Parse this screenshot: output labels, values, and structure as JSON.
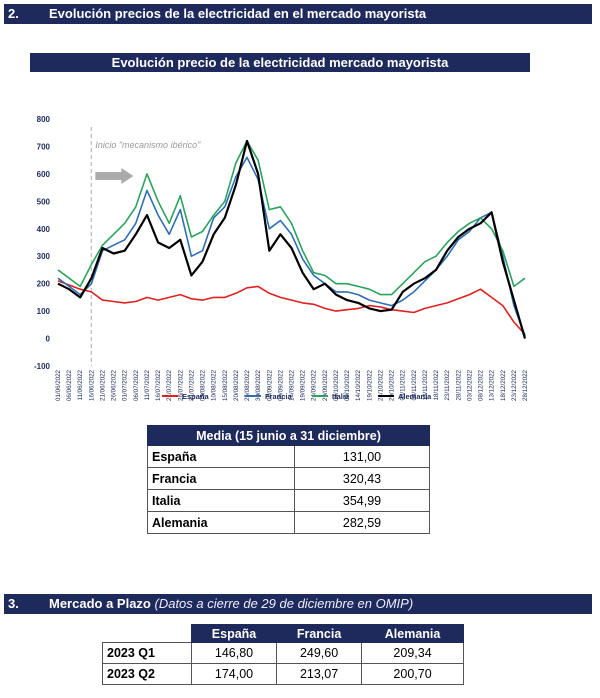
{
  "section2": {
    "number": "2.",
    "title": "Evolución precios de la electricidad en el mercado mayorista"
  },
  "chart_title": "Evolución precio de la electricidad mercado mayorista",
  "chart_data": {
    "type": "line",
    "title": "Evolución precio de la electricidad mercado mayorista",
    "ylim": [
      -100,
      800
    ],
    "yticks": [
      -100,
      0,
      100,
      200,
      300,
      400,
      500,
      600,
      700,
      800
    ],
    "xlabel": "",
    "ylabel": "",
    "x": [
      "01/06/2022",
      "06/06/2022",
      "11/06/2022",
      "16/06/2022",
      "21/06/2022",
      "26/06/2022",
      "01/07/2022",
      "06/07/2022",
      "11/07/2022",
      "16/07/2022",
      "21/07/2022",
      "26/07/2022",
      "31/07/2022",
      "05/08/2022",
      "10/08/2022",
      "15/08/2022",
      "20/08/2022",
      "25/08/2022",
      "30/08/2022",
      "04/09/2022",
      "09/09/2022",
      "14/09/2022",
      "19/09/2022",
      "24/09/2022",
      "29/09/2022",
      "04/10/2022",
      "09/10/2022",
      "14/10/2022",
      "19/10/2022",
      "24/10/2022",
      "29/10/2022",
      "03/11/2022",
      "08/11/2022",
      "13/11/2022",
      "18/11/2022",
      "23/11/2022",
      "28/11/2022",
      "03/12/2022",
      "08/12/2022",
      "13/12/2022",
      "18/12/2022",
      "23/12/2022",
      "28/12/2022"
    ],
    "annotation": "Inicio \"mecanismo ibérico\"",
    "annotation_x": "15/06/2022",
    "legend_position": "bottom",
    "series": [
      {
        "name": "España",
        "color": "#e02020",
        "values": [
          210,
          195,
          180,
          170,
          140,
          135,
          130,
          135,
          150,
          140,
          150,
          160,
          145,
          140,
          150,
          150,
          165,
          185,
          190,
          165,
          150,
          140,
          130,
          125,
          110,
          100,
          105,
          110,
          120,
          115,
          105,
          100,
          95,
          110,
          120,
          130,
          145,
          160,
          180,
          150,
          120,
          60,
          15
        ]
      },
      {
        "name": "Francia",
        "color": "#2f6eb5",
        "values": [
          220,
          190,
          160,
          200,
          320,
          340,
          360,
          420,
          540,
          450,
          380,
          470,
          300,
          320,
          440,
          480,
          590,
          660,
          580,
          400,
          430,
          380,
          290,
          230,
          200,
          170,
          170,
          160,
          140,
          130,
          120,
          140,
          170,
          210,
          250,
          300,
          360,
          390,
          440,
          460,
          300,
          120,
          10
        ]
      },
      {
        "name": "Italia",
        "color": "#2ca25f",
        "values": [
          250,
          220,
          190,
          270,
          340,
          380,
          420,
          480,
          600,
          500,
          420,
          520,
          370,
          390,
          450,
          500,
          640,
          720,
          650,
          470,
          480,
          420,
          320,
          240,
          230,
          200,
          200,
          190,
          180,
          160,
          160,
          200,
          240,
          280,
          300,
          350,
          390,
          420,
          440,
          400,
          320,
          190,
          220
        ]
      },
      {
        "name": "Alemania",
        "color": "#000000",
        "values": [
          200,
          180,
          150,
          220,
          330,
          310,
          320,
          380,
          450,
          350,
          330,
          360,
          230,
          280,
          380,
          440,
          560,
          720,
          600,
          320,
          380,
          330,
          240,
          180,
          200,
          160,
          140,
          130,
          110,
          100,
          105,
          170,
          200,
          220,
          250,
          320,
          370,
          400,
          420,
          460,
          280,
          140,
          0
        ]
      }
    ]
  },
  "media_table": {
    "header": "Media (15 junio a 31 diciembre)",
    "rows": [
      {
        "label": "España",
        "value": "131,00"
      },
      {
        "label": "Francia",
        "value": "320,43"
      },
      {
        "label": "Italia",
        "value": "354,99"
      },
      {
        "label": "Alemania",
        "value": "282,59"
      }
    ]
  },
  "section3": {
    "number": "3.",
    "title": "Mercado a Plazo",
    "subtitle": "(Datos a cierre de 29 de diciembre en OMIP)"
  },
  "plazo_table": {
    "headers": [
      "España",
      "Francia",
      "Alemania"
    ],
    "rows": [
      {
        "label": "2023 Q1",
        "values": [
          "146,80",
          "249,60",
          "209,34"
        ]
      },
      {
        "label": "2023 Q2",
        "values": [
          "174,00",
          "213,07",
          "200,70"
        ]
      }
    ]
  }
}
